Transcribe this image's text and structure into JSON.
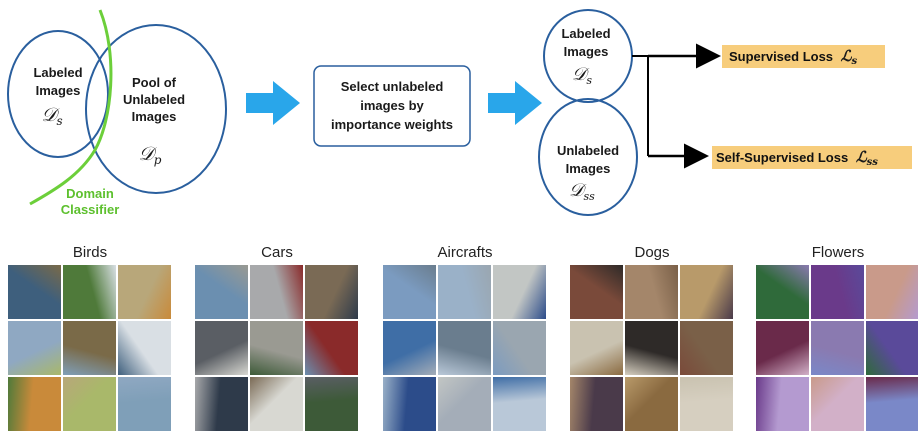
{
  "diagram": {
    "labeled_text": [
      "Labeled",
      "Images"
    ],
    "labeled_math": {
      "main": "𝒟",
      "sub": "s"
    },
    "pool_text": [
      "Pool of",
      "Unlabeled",
      "Images"
    ],
    "pool_math": {
      "main": "𝒟",
      "sub": "p"
    },
    "domain_classifier": [
      "Domain",
      "Classifier"
    ],
    "select_box": [
      "Select unlabeled",
      "images by",
      "importance weights"
    ],
    "right_labeled_text": [
      "Labeled",
      "Images"
    ],
    "right_labeled_math": {
      "main": "𝒟",
      "sub": "s"
    },
    "right_unlabeled_text": [
      "Unlabeled",
      "Images"
    ],
    "right_unlabeled_math": {
      "main": "𝒟",
      "sub": "ss"
    },
    "supervised_loss": {
      "text": "Supervised Loss",
      "main": "ℒ",
      "sub": "s"
    },
    "self_supervised_loss": {
      "text": "Self-Supervised Loss",
      "main": "ℒ",
      "sub": "ss"
    }
  },
  "colors": {
    "ellipse_stroke": "#2a5f9e",
    "arrow_blue": "#29a6ea",
    "classifier_green": "#6ccf3a",
    "loss_bg": "#f7cd7c",
    "box_stroke": "#2a5f9e"
  },
  "categories": [
    {
      "name": "Birds",
      "palette": [
        "#3e5f7d",
        "#4f7a3a",
        "#b8a77a",
        "#8fa8c2",
        "#7a6a48",
        "#d9dfe4",
        "#c98a3a",
        "#a9b86a",
        "#7f9fb8"
      ]
    },
    {
      "name": "Cars",
      "palette": [
        "#6b8fb0",
        "#a8a9ab",
        "#7a6a55",
        "#5a5e64",
        "#9a9a92",
        "#8a2a2a",
        "#2e3a4a",
        "#d8d8d2",
        "#3d5a38"
      ]
    },
    {
      "name": "Aircrafts",
      "palette": [
        "#7b9bc0",
        "#9ab1c8",
        "#c2c6c4",
        "#3f6ea6",
        "#6a7d8e",
        "#9aa6b0",
        "#2c4c8a",
        "#a4adb8",
        "#b9c8d8"
      ]
    },
    {
      "name": "Dogs",
      "palette": [
        "#7a4a3a",
        "#a4866a",
        "#b89a6a",
        "#c9c2b0",
        "#2e2a28",
        "#7a6048",
        "#4a3a4a",
        "#8a6a40",
        "#d6cfc0"
      ]
    },
    {
      "name": "Flowers",
      "palette": [
        "#2f6a3a",
        "#6a3a8a",
        "#c99a8a",
        "#6a2a4a",
        "#8a7ab0",
        "#5a4a9a",
        "#b49ad0",
        "#d2b0c8",
        "#7a88c8"
      ]
    }
  ]
}
